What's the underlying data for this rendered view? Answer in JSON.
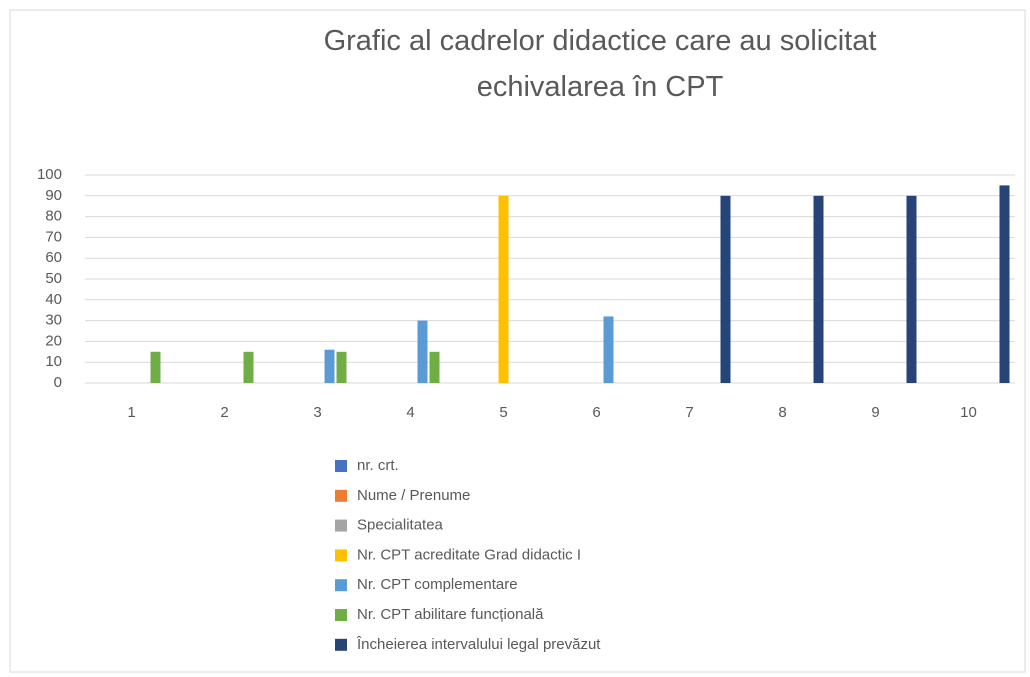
{
  "chart_data": {
    "type": "bar",
    "title": "Grafic al cadrelor didactice care au solicitat echivalarea în CPT",
    "categories": [
      "1",
      "2",
      "3",
      "4",
      "5",
      "6",
      "7",
      "8",
      "9",
      "10"
    ],
    "series": [
      {
        "name": "nr. crt.",
        "color": "#4472c4",
        "values": [
          null,
          null,
          null,
          null,
          null,
          null,
          null,
          null,
          null,
          null
        ]
      },
      {
        "name": "Nume / Prenume",
        "color": "#ed7d31",
        "values": [
          null,
          null,
          null,
          null,
          null,
          null,
          null,
          null,
          null,
          null
        ]
      },
      {
        "name": "Specialitatea",
        "color": "#a5a5a5",
        "values": [
          null,
          null,
          null,
          null,
          null,
          null,
          null,
          null,
          null,
          null
        ]
      },
      {
        "name": "Nr. CPT acreditate Grad didactic I",
        "color": "#ffc000",
        "values": [
          null,
          null,
          null,
          null,
          90,
          null,
          null,
          null,
          null,
          null
        ]
      },
      {
        "name": "Nr. CPT complementare",
        "color": "#5b9bd5",
        "values": [
          null,
          null,
          16,
          30,
          null,
          32,
          null,
          null,
          null,
          null
        ]
      },
      {
        "name": "Nr. CPT abilitare funcțională",
        "color": "#70ad47",
        "values": [
          15,
          15,
          15,
          15,
          null,
          null,
          null,
          null,
          null,
          null
        ]
      },
      {
        "name": "Încheierea intervalului legal prevăzut",
        "color": "#264478",
        "values": [
          null,
          null,
          null,
          null,
          null,
          null,
          90,
          90,
          90,
          95
        ]
      }
    ],
    "ylim": [
      0,
      100
    ],
    "yticks": [
      0,
      10,
      20,
      30,
      40,
      50,
      60,
      70,
      80,
      90,
      100
    ],
    "grid": true,
    "legend": "bottom"
  }
}
